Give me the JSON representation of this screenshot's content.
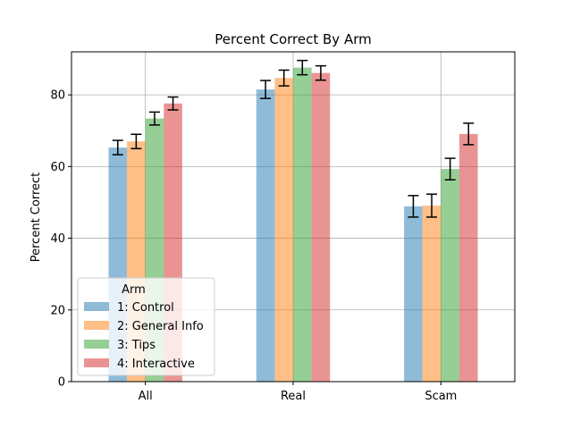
{
  "chart_data": {
    "type": "bar",
    "title": "Percent Correct By Arm",
    "xlabel": "",
    "ylabel": "Percent Correct",
    "categories": [
      "All",
      "Real",
      "Scam"
    ],
    "ylim": [
      0,
      92
    ],
    "yticks": [
      0,
      20,
      40,
      60,
      80
    ],
    "grid": true,
    "legend": {
      "title": "Arm",
      "placement": "lower-left"
    },
    "series": [
      {
        "name": "1: Control",
        "color": "#1f77b4",
        "values": [
          65.3,
          81.5,
          48.9
        ],
        "errors": [
          2.0,
          2.5,
          3.0
        ]
      },
      {
        "name": "2: General Info",
        "color": "#ff7f0e",
        "values": [
          67.0,
          84.7,
          49.1
        ],
        "errors": [
          2.0,
          2.2,
          3.2
        ]
      },
      {
        "name": "3: Tips",
        "color": "#2ca02c",
        "values": [
          73.4,
          87.6,
          59.3
        ],
        "errors": [
          1.8,
          2.0,
          3.0
        ]
      },
      {
        "name": "4: Interactive",
        "color": "#d62728",
        "values": [
          77.6,
          86.1,
          69.1
        ],
        "errors": [
          1.8,
          2.0,
          3.0
        ]
      }
    ]
  }
}
